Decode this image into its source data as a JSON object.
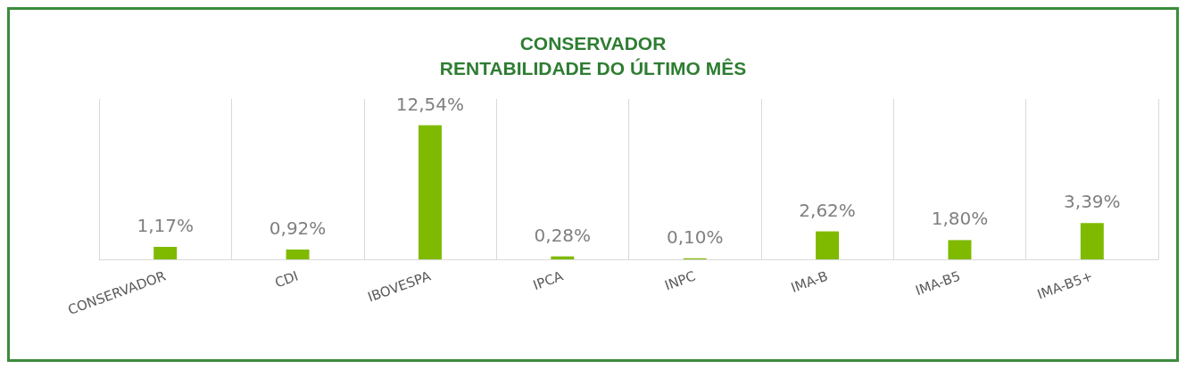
{
  "chart_data": {
    "type": "bar",
    "title": "CONSERVADOR\nRENTABILIDADE DO ÚLTIMO MÊS",
    "categories": [
      "CONSERVADOR",
      "CDI",
      "IBOVESPA",
      "IPCA",
      "INPC",
      "IMA-B",
      "IMA-B5",
      "IMA-B5+"
    ],
    "values": [
      1.17,
      0.92,
      12.54,
      0.28,
      0.1,
      2.62,
      1.8,
      3.39
    ],
    "value_labels": [
      "1,17%",
      "0,92%",
      "12,54%",
      "0,28%",
      "0,10%",
      "2,62%",
      "1,80%",
      "3,39%"
    ],
    "color": "#7fba00",
    "grid": "x",
    "tick_labels": "x"
  }
}
